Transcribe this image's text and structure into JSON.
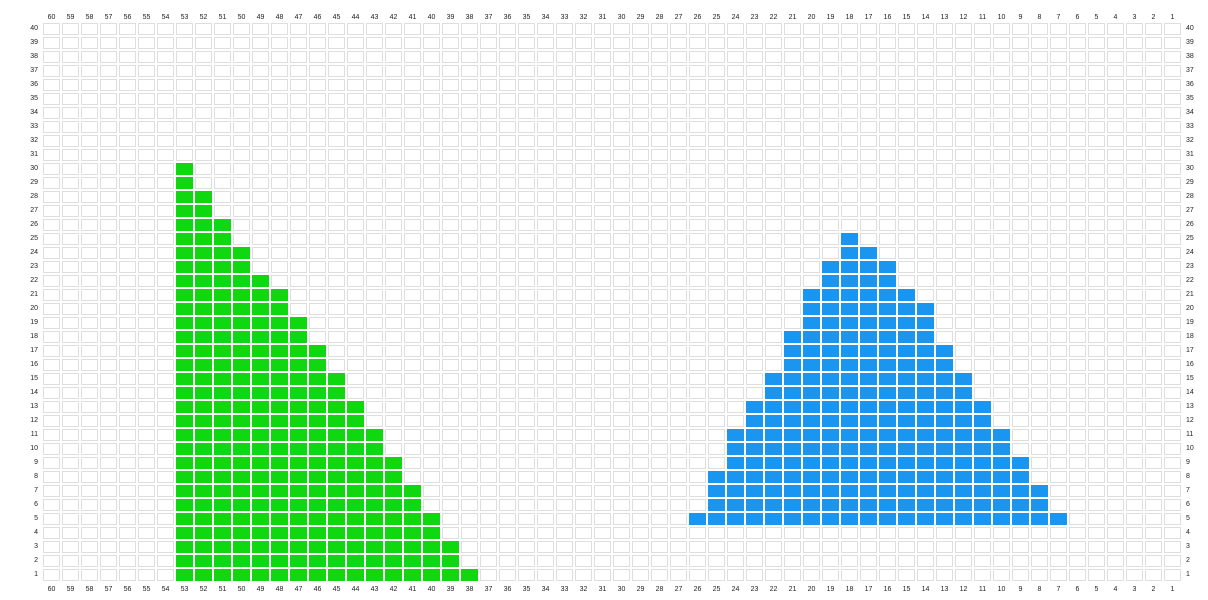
{
  "grid": {
    "columns_left_to_right": [
      60,
      59,
      58,
      57,
      56,
      55,
      54,
      53,
      52,
      51,
      50,
      49,
      48,
      47,
      46,
      45,
      44,
      43,
      42,
      41,
      40,
      39,
      38,
      37,
      36,
      35,
      34,
      33,
      32,
      31,
      30,
      29,
      28,
      27,
      26,
      25,
      24,
      23,
      22,
      21,
      20,
      19,
      18,
      17,
      16,
      15,
      14,
      13,
      12,
      11,
      10,
      9,
      8,
      7,
      6,
      5,
      4,
      3,
      2,
      1
    ],
    "rows_top_to_bottom": [
      40,
      39,
      38,
      37,
      36,
      35,
      34,
      33,
      32,
      31,
      30,
      29,
      28,
      27,
      26,
      25,
      24,
      23,
      22,
      21,
      20,
      19,
      18,
      17,
      16,
      15,
      14,
      13,
      12,
      11,
      10,
      9,
      8,
      7,
      6,
      5,
      4,
      3,
      2,
      1
    ]
  },
  "shapes": [
    {
      "name": "green-staircase-triangle",
      "color": "#10d810",
      "rows": [
        {
          "row": 1,
          "from": 38,
          "to": 53
        },
        {
          "row": 2,
          "from": 39,
          "to": 53
        },
        {
          "row": 3,
          "from": 39,
          "to": 53
        },
        {
          "row": 4,
          "from": 40,
          "to": 53
        },
        {
          "row": 5,
          "from": 40,
          "to": 53
        },
        {
          "row": 6,
          "from": 41,
          "to": 53
        },
        {
          "row": 7,
          "from": 41,
          "to": 53
        },
        {
          "row": 8,
          "from": 42,
          "to": 53
        },
        {
          "row": 9,
          "from": 42,
          "to": 53
        },
        {
          "row": 10,
          "from": 43,
          "to": 53
        },
        {
          "row": 11,
          "from": 43,
          "to": 53
        },
        {
          "row": 12,
          "from": 44,
          "to": 53
        },
        {
          "row": 13,
          "from": 44,
          "to": 53
        },
        {
          "row": 14,
          "from": 45,
          "to": 53
        },
        {
          "row": 15,
          "from": 45,
          "to": 53
        },
        {
          "row": 16,
          "from": 46,
          "to": 53
        },
        {
          "row": 17,
          "from": 46,
          "to": 53
        },
        {
          "row": 18,
          "from": 47,
          "to": 53
        },
        {
          "row": 19,
          "from": 47,
          "to": 53
        },
        {
          "row": 20,
          "from": 48,
          "to": 53
        },
        {
          "row": 21,
          "from": 48,
          "to": 53
        },
        {
          "row": 22,
          "from": 49,
          "to": 53
        },
        {
          "row": 23,
          "from": 50,
          "to": 53
        },
        {
          "row": 24,
          "from": 50,
          "to": 53
        },
        {
          "row": 25,
          "from": 51,
          "to": 53
        },
        {
          "row": 26,
          "from": 51,
          "to": 53
        },
        {
          "row": 27,
          "from": 52,
          "to": 53
        },
        {
          "row": 28,
          "from": 52,
          "to": 53
        },
        {
          "row": 29,
          "from": 53,
          "to": 53
        },
        {
          "row": 30,
          "from": 53,
          "to": 53
        }
      ]
    },
    {
      "name": "blue-staircase-triangle",
      "color": "#1a96f0",
      "rows": [
        {
          "row": 5,
          "from": 7,
          "to": 26
        },
        {
          "row": 6,
          "from": 8,
          "to": 25
        },
        {
          "row": 7,
          "from": 8,
          "to": 25
        },
        {
          "row": 8,
          "from": 9,
          "to": 25
        },
        {
          "row": 9,
          "from": 9,
          "to": 24
        },
        {
          "row": 10,
          "from": 10,
          "to": 24
        },
        {
          "row": 11,
          "from": 10,
          "to": 24
        },
        {
          "row": 12,
          "from": 11,
          "to": 23
        },
        {
          "row": 13,
          "from": 11,
          "to": 23
        },
        {
          "row": 14,
          "from": 12,
          "to": 22
        },
        {
          "row": 15,
          "from": 12,
          "to": 22
        },
        {
          "row": 16,
          "from": 13,
          "to": 21
        },
        {
          "row": 17,
          "from": 13,
          "to": 21
        },
        {
          "row": 18,
          "from": 14,
          "to": 21
        },
        {
          "row": 19,
          "from": 14,
          "to": 20
        },
        {
          "row": 20,
          "from": 14,
          "to": 20
        },
        {
          "row": 21,
          "from": 15,
          "to": 20
        },
        {
          "row": 22,
          "from": 16,
          "to": 19
        },
        {
          "row": 23,
          "from": 16,
          "to": 19
        },
        {
          "row": 24,
          "from": 17,
          "to": 18
        },
        {
          "row": 25,
          "from": 18,
          "to": 18
        }
      ]
    }
  ]
}
